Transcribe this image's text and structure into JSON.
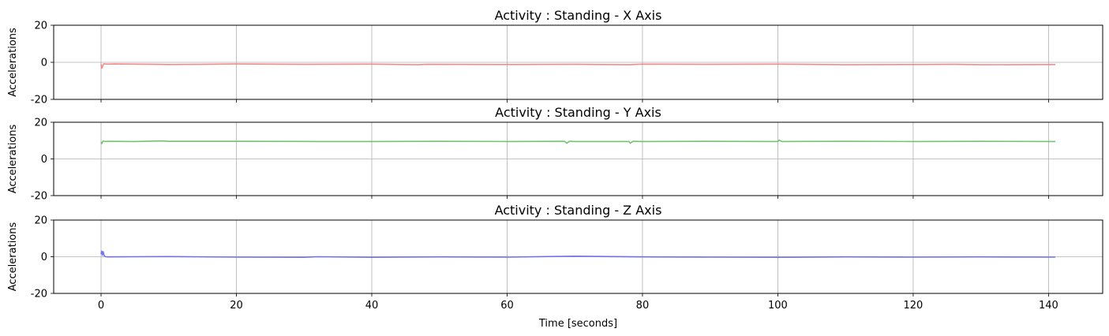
{
  "chart_data": [
    {
      "type": "line",
      "title": "Activity : Standing - X Axis",
      "xlabel": "",
      "ylabel": "Accelerations",
      "xlim": [
        -7,
        148
      ],
      "ylim": [
        -20,
        20
      ],
      "xticks": [
        0,
        20,
        40,
        60,
        80,
        100,
        120,
        140
      ],
      "yticks": [
        -20,
        0,
        20
      ],
      "grid": true,
      "color": "#f08080",
      "series": [
        {
          "x": [
            0.0,
            0.1,
            0.2,
            0.3,
            0.4,
            0.6,
            1,
            2,
            5,
            8,
            10,
            15,
            20,
            30,
            40,
            47,
            48,
            60,
            70,
            78,
            80,
            90,
            100,
            110,
            120,
            126,
            130,
            141
          ],
          "values": [
            -1.0,
            -3.2,
            -2.6,
            -1.3,
            -0.8,
            -0.9,
            -1.0,
            -0.9,
            -1.0,
            -1.1,
            -1.2,
            -1.1,
            -0.9,
            -1.1,
            -1.0,
            -1.3,
            -1.1,
            -1.2,
            -1.1,
            -1.3,
            -1.0,
            -1.1,
            -1.0,
            -1.3,
            -1.2,
            -1.1,
            -1.3,
            -1.2
          ]
        }
      ]
    },
    {
      "type": "line",
      "title": "Activity : Standing - Y Axis",
      "xlabel": "",
      "ylabel": "Accelerations",
      "xlim": [
        -7,
        148
      ],
      "ylim": [
        -20,
        20
      ],
      "xticks": [
        0,
        20,
        40,
        60,
        80,
        100,
        120,
        140
      ],
      "yticks": [
        -20,
        0,
        20
      ],
      "grid": true,
      "color": "#66bb66",
      "series": [
        {
          "x": [
            0.0,
            0.1,
            0.3,
            0.6,
            1,
            5,
            9,
            10,
            20,
            32,
            40,
            50,
            60,
            68.5,
            68.8,
            69.2,
            70,
            78,
            78.2,
            78.6,
            80,
            90,
            100,
            100.2,
            100.6,
            110,
            120,
            130,
            141
          ],
          "values": [
            9.3,
            8.4,
            9.7,
            9.5,
            9.6,
            9.5,
            9.8,
            9.6,
            9.6,
            9.5,
            9.5,
            9.6,
            9.5,
            9.6,
            8.5,
            9.6,
            9.5,
            9.5,
            8.6,
            9.6,
            9.5,
            9.6,
            9.5,
            10.3,
            9.5,
            9.6,
            9.5,
            9.6,
            9.5
          ]
        }
      ]
    },
    {
      "type": "line",
      "title": "Activity : Standing - Z Axis",
      "xlabel": "Time [seconds]",
      "ylabel": "Accelerations",
      "xlim": [
        -7,
        148
      ],
      "ylim": [
        -20,
        20
      ],
      "xticks": [
        0,
        20,
        40,
        60,
        80,
        100,
        120,
        140
      ],
      "yticks": [
        -20,
        0,
        20
      ],
      "grid": true,
      "color": "#6666ee",
      "series": [
        {
          "x": [
            0.0,
            0.1,
            0.2,
            0.3,
            0.5,
            0.7,
            1,
            5,
            10,
            20,
            30,
            32,
            40,
            50,
            60,
            70,
            80,
            90,
            100,
            110,
            120,
            130,
            141
          ],
          "values": [
            1.5,
            3.0,
            0.8,
            2.8,
            0.3,
            0.0,
            -0.1,
            0.0,
            0.1,
            -0.2,
            -0.3,
            0.0,
            -0.3,
            -0.1,
            -0.2,
            0.3,
            -0.1,
            -0.2,
            -0.3,
            -0.1,
            -0.2,
            -0.1,
            -0.2
          ]
        }
      ]
    }
  ]
}
